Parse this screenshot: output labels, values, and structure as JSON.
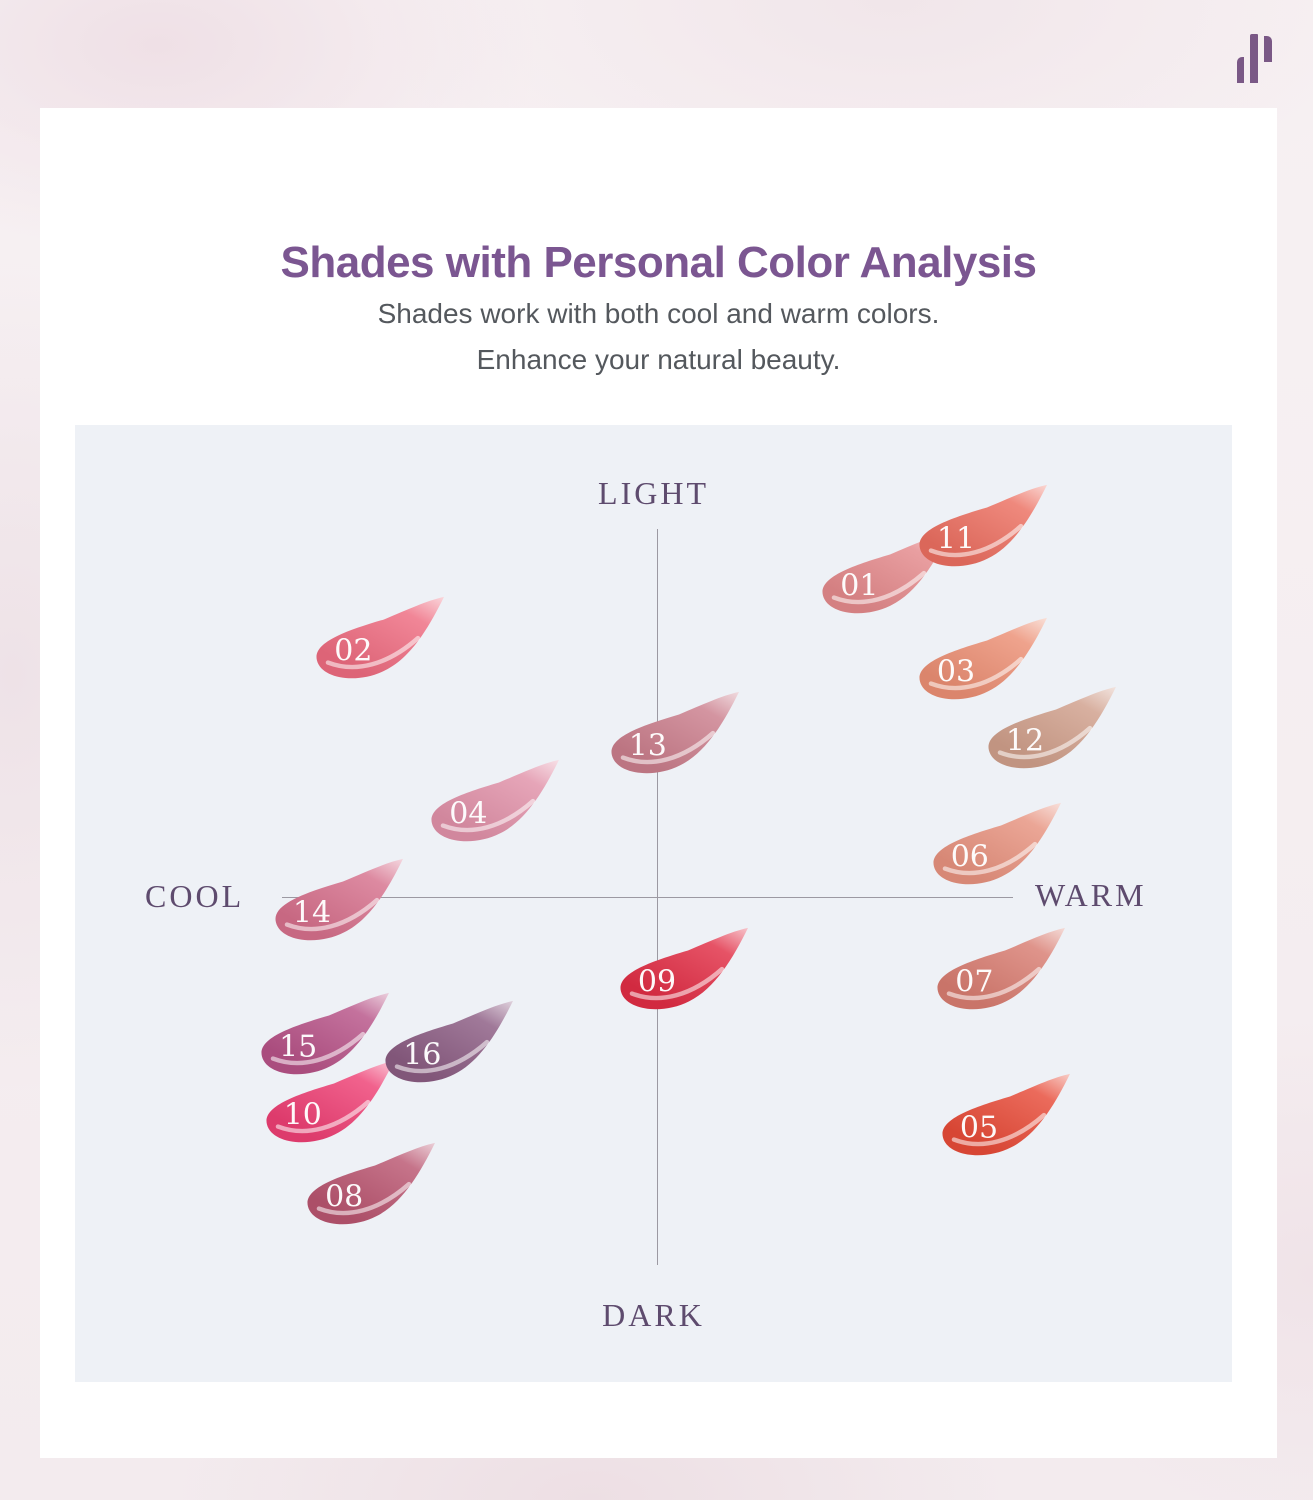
{
  "header": {
    "title": "Shades with Personal Color Analysis",
    "subtitle_line1": "Shades work with both cool and warm colors.",
    "subtitle_line2": "Enhance your natural beauty."
  },
  "brand": {
    "logo_icon": "three-bars-logo"
  },
  "colors": {
    "title": "#7b5691",
    "subtitle": "#54585d",
    "axis_label": "#5e4b6e",
    "axis_line": "#9c99a2",
    "chartbg": "#eef1f6",
    "card": "#ffffff",
    "logo": "#7a5886",
    "number_text": "#ffffff"
  },
  "chart_data": {
    "type": "scatter",
    "title": "Shades with Personal Color Analysis",
    "axes": {
      "top": "LIGHT",
      "bottom": "DARK",
      "left": "COOL",
      "right": "WARM"
    },
    "x_range": [
      -1,
      1
    ],
    "y_range": [
      -1,
      1
    ],
    "grid": false,
    "points": [
      {
        "label": "01",
        "x": 0.44,
        "y": 0.72,
        "color": "#e48a8c"
      },
      {
        "label": "02",
        "x": -0.66,
        "y": 0.57,
        "color": "#ee6b80"
      },
      {
        "label": "03",
        "x": 0.65,
        "y": 0.52,
        "color": "#eb8f74"
      },
      {
        "label": "04",
        "x": -0.41,
        "y": 0.19,
        "color": "#e191a9"
      },
      {
        "label": "05",
        "x": 0.7,
        "y": -0.54,
        "color": "#e74b38"
      },
      {
        "label": "06",
        "x": 0.68,
        "y": 0.09,
        "color": "#e7927f"
      },
      {
        "label": "07",
        "x": 0.69,
        "y": -0.2,
        "color": "#d87d71"
      },
      {
        "label": "08",
        "x": -0.68,
        "y": -0.7,
        "color": "#b95570"
      },
      {
        "label": "09",
        "x": 0.0,
        "y": -0.2,
        "color": "#e12d45"
      },
      {
        "label": "10",
        "x": -0.77,
        "y": -0.51,
        "color": "#ee3f74"
      },
      {
        "label": "11",
        "x": 0.65,
        "y": 0.83,
        "color": "#ec6f61"
      },
      {
        "label": "12",
        "x": 0.8,
        "y": 0.36,
        "color": "#cf9f8b"
      },
      {
        "label": "13",
        "x": -0.02,
        "y": 0.35,
        "color": "#ca7e8c"
      },
      {
        "label": "14",
        "x": -0.75,
        "y": -0.04,
        "color": "#d6708c"
      },
      {
        "label": "15",
        "x": -0.78,
        "y": -0.35,
        "color": "#b75387"
      },
      {
        "label": "16",
        "x": -0.51,
        "y": -0.37,
        "color": "#8b5c82"
      }
    ]
  }
}
